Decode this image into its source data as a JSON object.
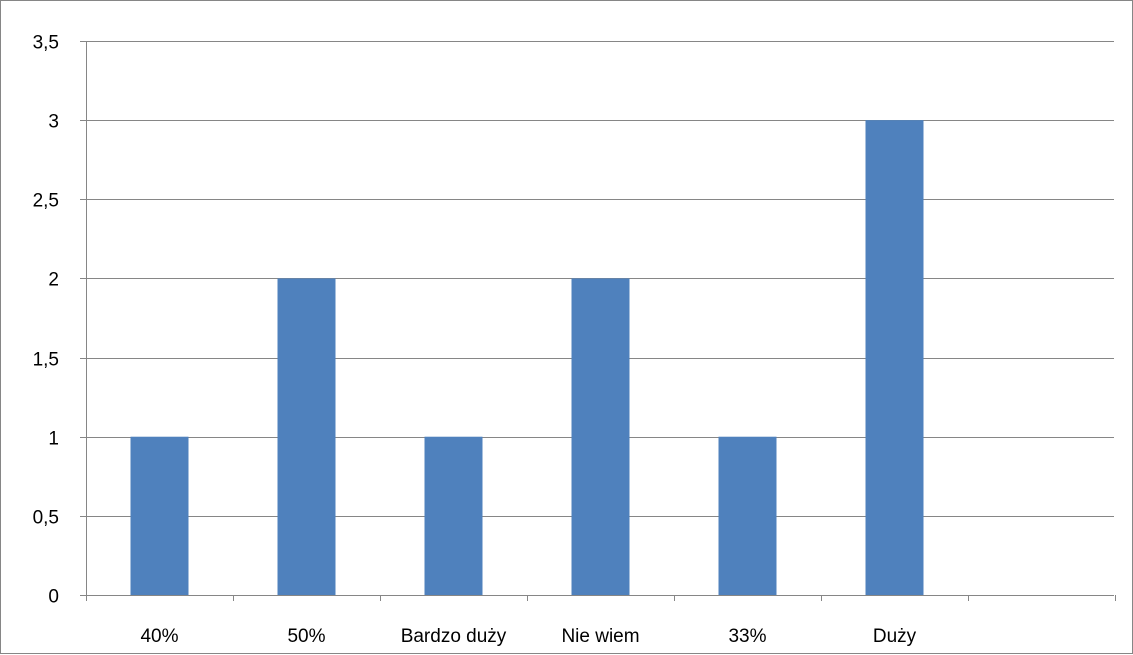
{
  "chart_data": {
    "type": "bar",
    "categories": [
      "40%",
      "50%",
      "Bardzo duży",
      "Nie wiem",
      "33%",
      "Duży",
      ""
    ],
    "values": [
      1,
      2,
      1,
      2,
      1,
      3,
      null
    ],
    "y_ticks": [
      "0",
      "0,5",
      "1",
      "1,5",
      "2",
      "2,5",
      "3",
      "3,5"
    ],
    "ylim": [
      0,
      3.5
    ],
    "grid": true,
    "legend": "none",
    "colors": {
      "bar": "#4f81bd",
      "grid": "#868686",
      "axis": "#868686"
    }
  }
}
